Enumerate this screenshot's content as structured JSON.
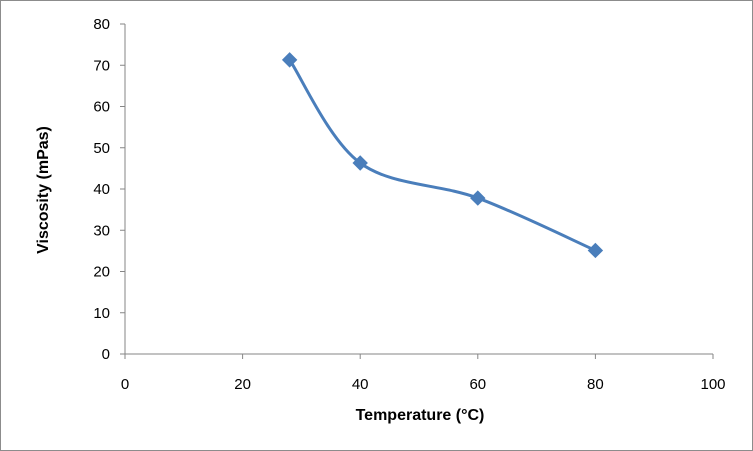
{
  "chart_data": {
    "type": "scatter",
    "title": "",
    "xlabel": "Temperature (°C)",
    "ylabel": "Viscosity (mPas)",
    "xlim": [
      0,
      100
    ],
    "ylim": [
      0,
      80
    ],
    "x_ticks": [
      "0",
      "20",
      "40",
      "60",
      "80",
      "100"
    ],
    "y_ticks": [
      "0",
      "10",
      "20",
      "30",
      "40",
      "50",
      "60",
      "70",
      "80"
    ],
    "grid": false,
    "legend": "none",
    "line_style": "smoothed",
    "marker": "diamond",
    "series": [
      {
        "color": "#4a7ebb",
        "x": [
          28,
          40,
          60,
          80
        ],
        "y": [
          71.3,
          46.3,
          37.8,
          25.1
        ]
      }
    ]
  }
}
